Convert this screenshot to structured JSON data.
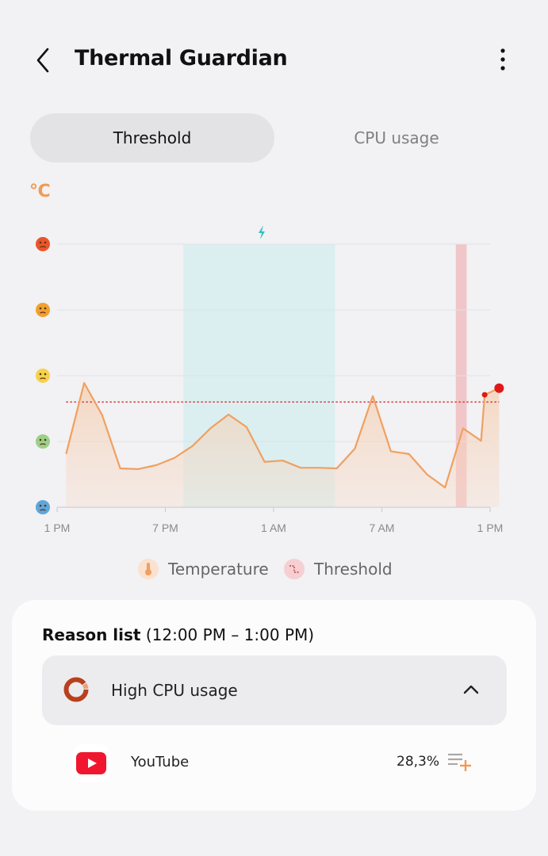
{
  "header": {
    "title": "Thermal Guardian",
    "back_icon": "chevron-left-icon",
    "more_icon": "more-vertical-icon"
  },
  "tabs": [
    {
      "label": "Threshold",
      "active": true
    },
    {
      "label": "CPU usage",
      "active": false
    }
  ],
  "unit_label": "℃",
  "chart_data": {
    "type": "area",
    "x_ticks": [
      "1 PM",
      "7 PM",
      "1 AM",
      "7 AM",
      "1 PM"
    ],
    "y_levels": [
      "very-hot-face",
      "hot-face",
      "warm-face",
      "cool-face",
      "cold-face"
    ],
    "ylim": [
      0,
      4
    ],
    "series": [
      {
        "name": "Temperature",
        "color": "#f0a060",
        "points": [
          [
            0,
            0.81
          ],
          [
            1,
            1.89
          ],
          [
            2,
            1.4
          ],
          [
            3,
            0.59
          ],
          [
            4,
            0.58
          ],
          [
            5,
            0.64
          ],
          [
            6,
            0.75
          ],
          [
            7,
            0.93
          ],
          [
            8,
            1.2
          ],
          [
            9,
            1.41
          ],
          [
            10,
            1.22
          ],
          [
            11,
            0.69
          ],
          [
            12,
            0.71
          ],
          [
            13,
            0.6
          ],
          [
            14,
            0.6
          ],
          [
            15,
            0.59
          ],
          [
            16,
            0.89
          ],
          [
            17,
            1.69
          ],
          [
            18,
            0.85
          ],
          [
            19,
            0.81
          ],
          [
            20,
            0.5
          ],
          [
            21,
            0.3
          ],
          [
            22,
            1.2
          ],
          [
            23,
            1.01
          ],
          [
            23.2,
            1.71
          ],
          [
            24,
            1.81
          ]
        ]
      },
      {
        "name": "Threshold",
        "color": "#d03030",
        "value": 1.6
      }
    ],
    "charging_span": [
      7.0,
      15.4
    ],
    "alert_span": [
      22.1,
      22.7
    ],
    "grid": true
  },
  "legend": {
    "temperature": "Temperature",
    "threshold": "Threshold"
  },
  "reasons": {
    "title_bold": "Reason list",
    "title_range": " (12:00 PM – 1:00 PM)",
    "items": [
      {
        "label": "High CPU usage",
        "icon": "cpu-donut-icon",
        "expanded": true
      }
    ],
    "apps": [
      {
        "name": "YouTube",
        "percent": "28,3%",
        "icon": "youtube-icon"
      }
    ]
  }
}
